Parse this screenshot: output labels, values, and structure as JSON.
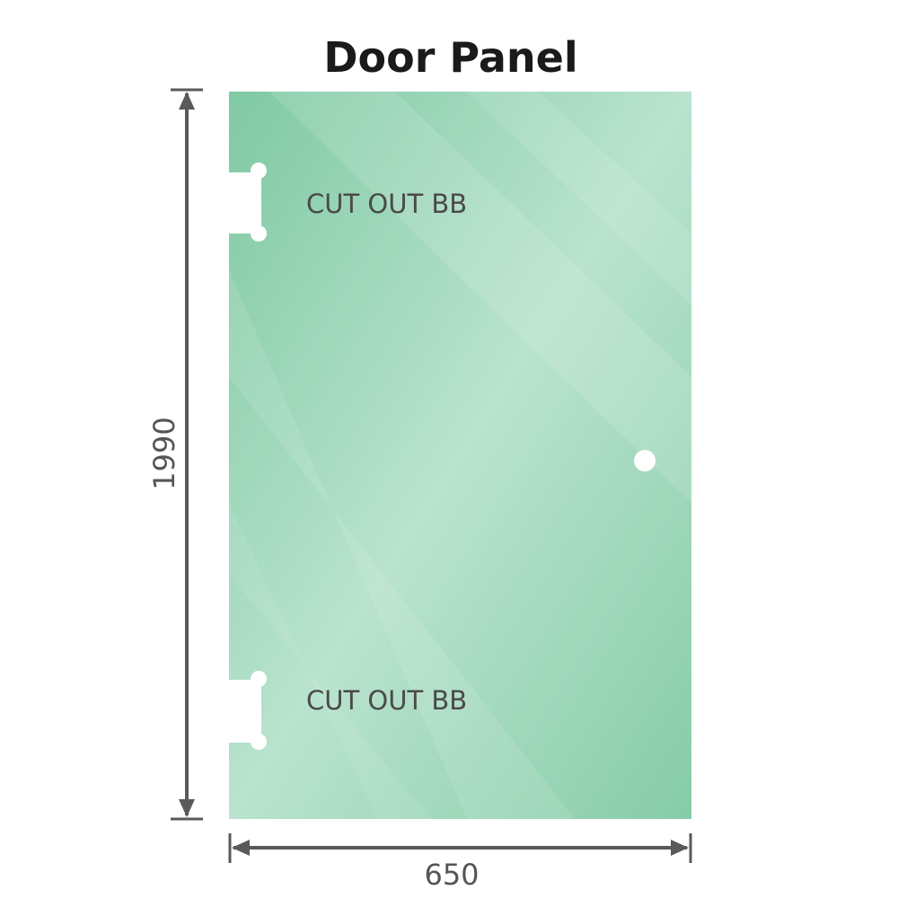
{
  "title": "Door Panel",
  "cutout_top_label": "CUT OUT BB",
  "cutout_bottom_label": "CUT OUT BB",
  "height_dimension": "1990",
  "width_dimension": "650",
  "colors": {
    "glass": "#8fd0b0",
    "glass_light": "#bfe6d3",
    "dimension_line": "#5a5a5a"
  }
}
